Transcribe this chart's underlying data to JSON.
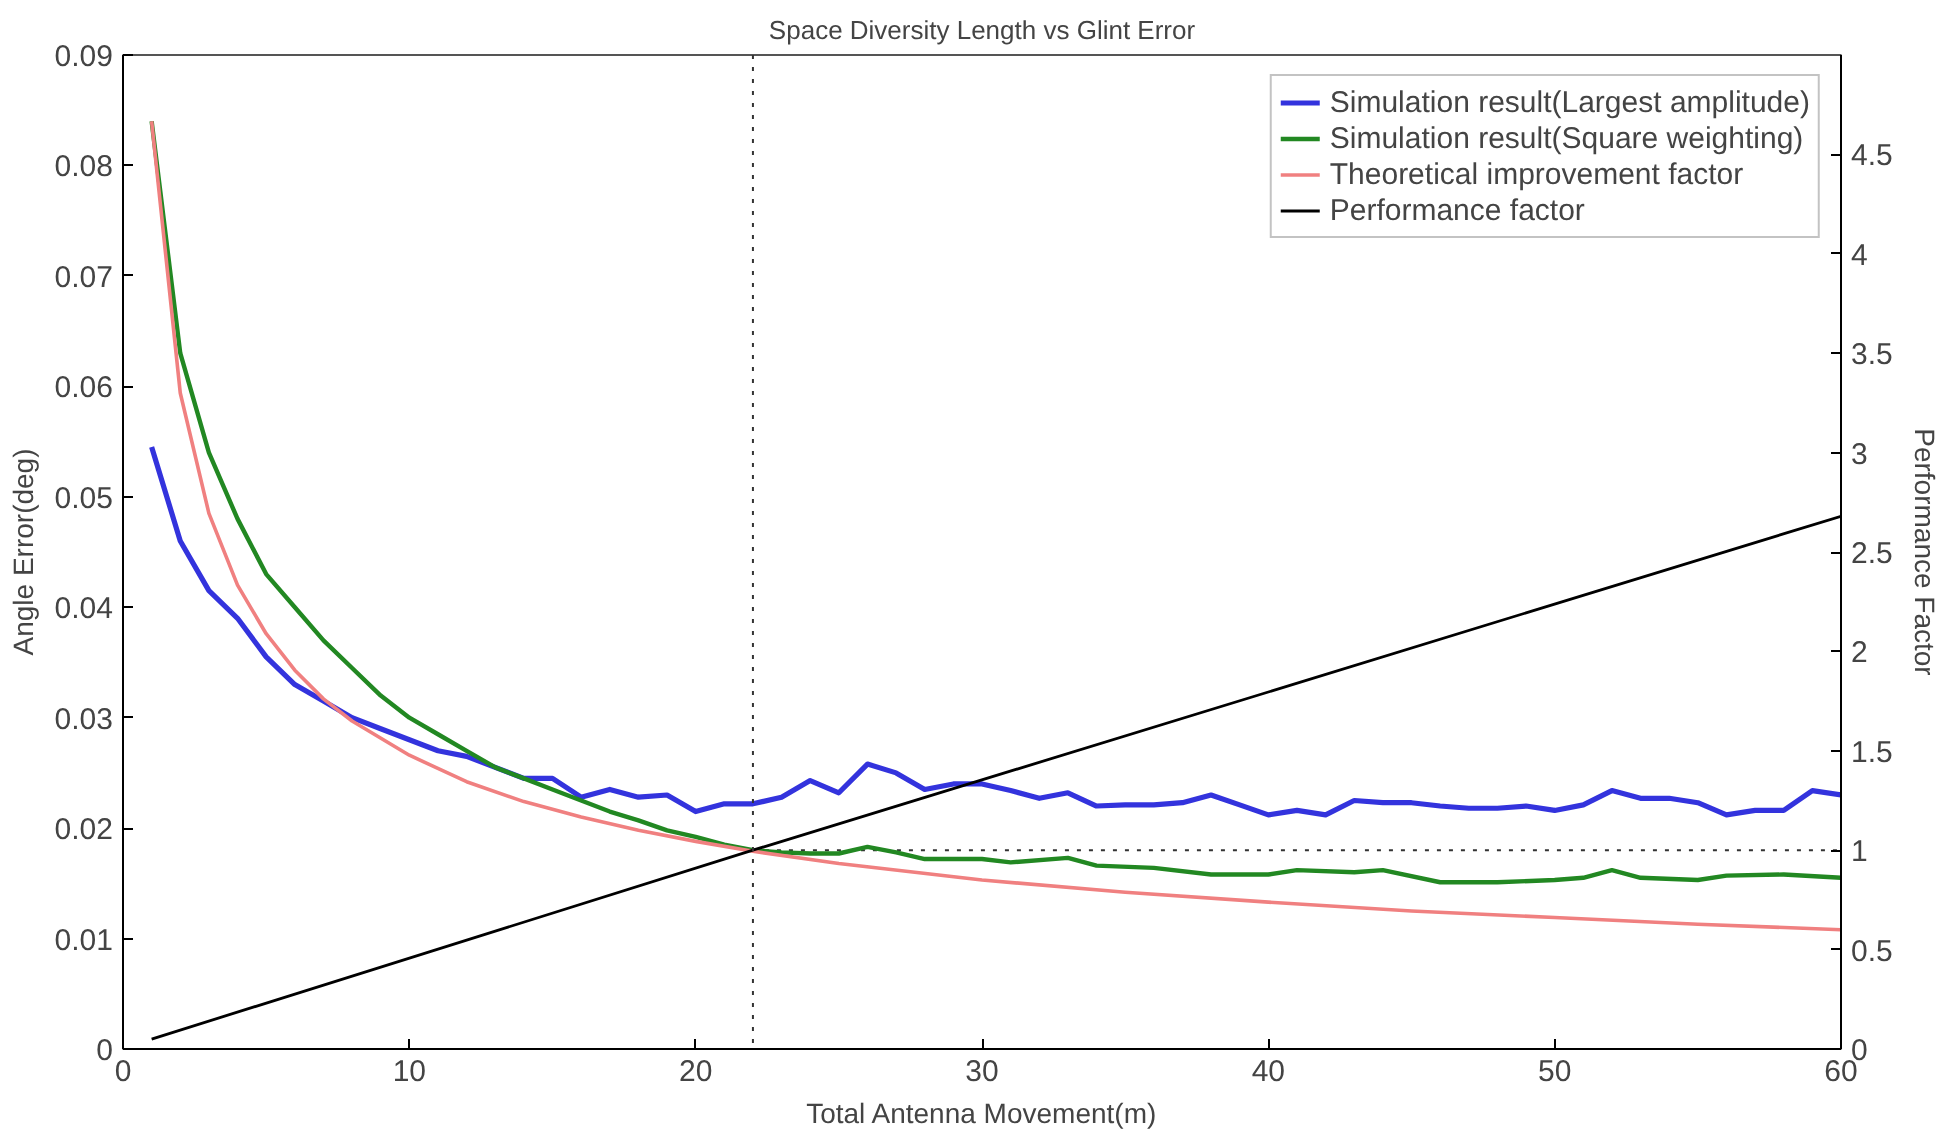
{
  "chart_data": {
    "type": "line",
    "title": "Space Diversity Length vs Glint Error",
    "xlabel": "Total Antenna Movement(m)",
    "ylabel": "Angle Error(deg)",
    "y2label": "Performance Factor",
    "xlim": [
      0,
      60
    ],
    "xticks": [
      0,
      10,
      20,
      30,
      40,
      50,
      60
    ],
    "ylim": [
      0,
      0.09
    ],
    "yticks": [
      0,
      0.01,
      0.02,
      0.03,
      0.04,
      0.05,
      0.06,
      0.07,
      0.08,
      0.09
    ],
    "y2lim": [
      0,
      5
    ],
    "y2ticks": [
      0,
      0.5,
      1,
      1.5,
      2,
      2.5,
      3,
      3.5,
      4,
      4.5
    ],
    "grid": false,
    "legend": "top right",
    "line_style": "solid",
    "marker": "none",
    "series": [
      {
        "name": "Simulation result(Largest amplitude)",
        "color": "#3333dd",
        "x": [
          1,
          2,
          3,
          4,
          5,
          6,
          7,
          8,
          9,
          10,
          11,
          12,
          13,
          14,
          15,
          16,
          17,
          18,
          19,
          20,
          21,
          22,
          23,
          24,
          25,
          26,
          27,
          28,
          29,
          30,
          31,
          32,
          33,
          34,
          35,
          36,
          37,
          38,
          39,
          40,
          41,
          42,
          43,
          44,
          45,
          46,
          47,
          48,
          49,
          50,
          51,
          52,
          53,
          54,
          55,
          56,
          57,
          58,
          59,
          60
        ],
        "values": [
          0.0545,
          0.046,
          0.0415,
          0.039,
          0.0355,
          0.033,
          0.0315,
          0.03,
          0.029,
          0.028,
          0.027,
          0.0265,
          0.0255,
          0.0245,
          0.0245,
          0.0228,
          0.0235,
          0.0228,
          0.023,
          0.0215,
          0.0222,
          0.0222,
          0.0228,
          0.0243,
          0.0232,
          0.0258,
          0.025,
          0.0235,
          0.024,
          0.024,
          0.0234,
          0.0227,
          0.0232,
          0.022,
          0.0221,
          0.0221,
          0.0223,
          0.023,
          0.0221,
          0.0212,
          0.0216,
          0.0212,
          0.0225,
          0.0223,
          0.0223,
          0.022,
          0.0218,
          0.0218,
          0.022,
          0.0216,
          0.0221,
          0.0234,
          0.0227,
          0.0227,
          0.0223,
          0.0212,
          0.0216,
          0.0216,
          0.0234,
          0.023
        ]
      },
      {
        "name": "Simulation result(Square weighting)",
        "color": "#228822",
        "x": [
          1,
          2,
          3,
          4,
          5,
          6,
          7,
          8,
          9,
          10,
          11,
          12,
          13,
          14,
          15,
          16,
          17,
          18,
          19,
          20,
          21,
          22,
          23,
          24,
          25,
          26,
          27,
          28,
          29,
          30,
          31,
          33,
          34,
          36,
          38,
          40,
          41,
          43,
          44,
          46,
          48,
          50,
          51,
          52,
          53,
          55,
          56,
          58,
          60
        ],
        "values": [
          0.084,
          0.063,
          0.054,
          0.048,
          0.043,
          0.04,
          0.037,
          0.0345,
          0.032,
          0.03,
          0.0285,
          0.027,
          0.0255,
          0.0245,
          0.0235,
          0.0225,
          0.0215,
          0.0207,
          0.0198,
          0.0192,
          0.0185,
          0.018,
          0.0178,
          0.0177,
          0.0177,
          0.0183,
          0.0178,
          0.0172,
          0.0172,
          0.0172,
          0.0169,
          0.0173,
          0.0166,
          0.0164,
          0.0158,
          0.0158,
          0.0162,
          0.016,
          0.0162,
          0.0151,
          0.0151,
          0.0153,
          0.0155,
          0.0162,
          0.0155,
          0.0153,
          0.0157,
          0.0158,
          0.0155
        ]
      },
      {
        "name": "Theoretical improvement factor",
        "color": "#f08080",
        "x": [
          1,
          2,
          3,
          4,
          5,
          6,
          7,
          8,
          10,
          12,
          14,
          16,
          18,
          20,
          22,
          25,
          30,
          35,
          40,
          45,
          50,
          55,
          60
        ],
        "values": [
          0.084,
          0.0594,
          0.0485,
          0.042,
          0.0376,
          0.0343,
          0.0317,
          0.0297,
          0.0266,
          0.0242,
          0.0224,
          0.021,
          0.0198,
          0.0188,
          0.0179,
          0.0168,
          0.0153,
          0.0142,
          0.0133,
          0.0125,
          0.0119,
          0.0113,
          0.0108
        ]
      },
      {
        "name": "Performance factor",
        "color": "#000000",
        "axis": "y2",
        "x": [
          1,
          22,
          60
        ],
        "values": [
          0.05,
          1,
          2.68
        ]
      }
    ],
    "ref_lines": [
      {
        "axis": "x",
        "value": 22,
        "color": "#333333",
        "line_style": "dotted"
      },
      {
        "axis": "y2",
        "value": 1,
        "color": "#333333",
        "line_style": "dotted"
      }
    ]
  }
}
